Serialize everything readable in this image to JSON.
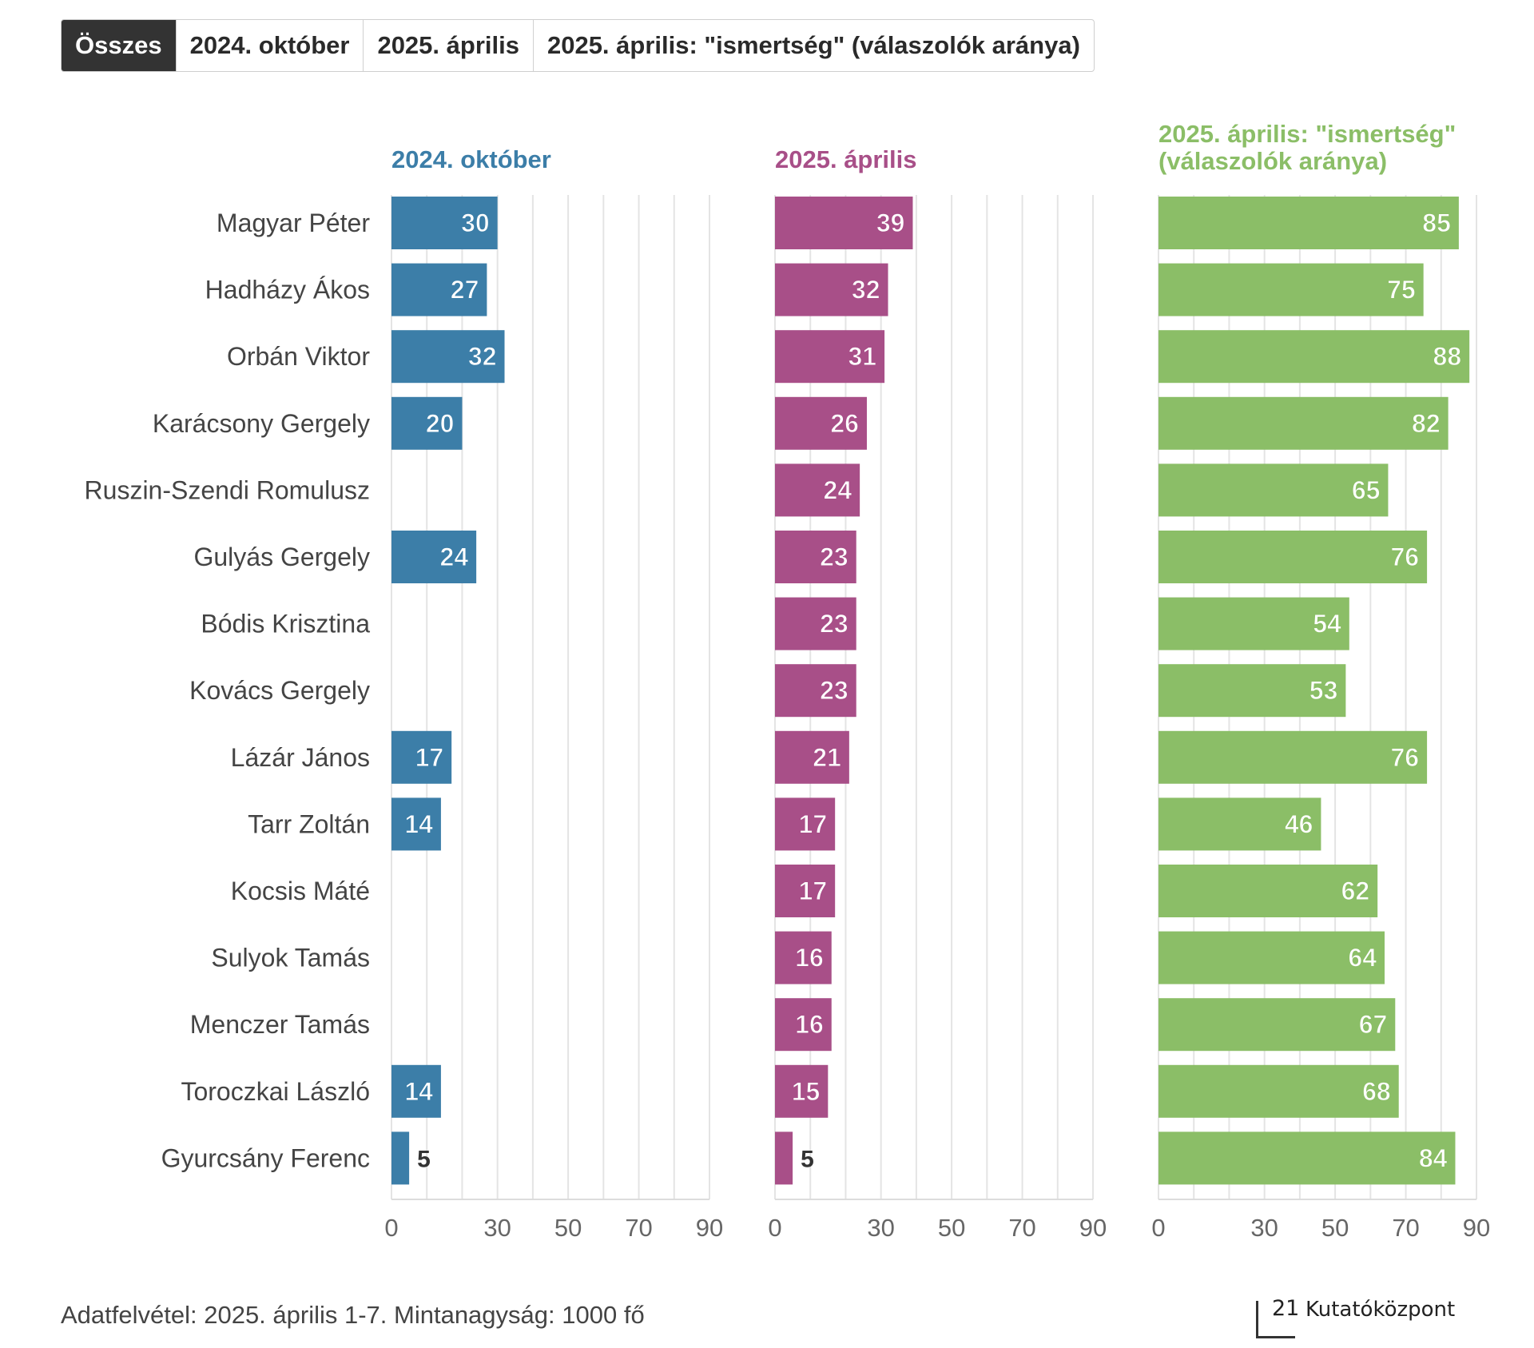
{
  "tabs": [
    {
      "label": "Összes",
      "active": true
    },
    {
      "label": "2024. október",
      "active": false
    },
    {
      "label": "2025. április",
      "active": false
    },
    {
      "label": "2025. április: \"ismertség\" (válaszolók aránya)",
      "active": false
    }
  ],
  "chart_data": {
    "type": "bar",
    "orientation": "horizontal",
    "categories": [
      "Magyar Péter",
      "Hadházy Ákos",
      "Orbán Viktor",
      "Karácsony Gergely",
      "Ruszin-Szendi Romulusz",
      "Gulyás Gergely",
      "Bódis Krisztina",
      "Kovács Gergely",
      "Lázár János",
      "Tarr Zoltán",
      "Kocsis Máté",
      "Sulyok Tamás",
      "Menczer Tamás",
      "Toroczkai László",
      "Gyurcsány Ferenc"
    ],
    "xlim": [
      0,
      90
    ],
    "x_ticks": [
      0,
      30,
      50,
      70,
      90
    ],
    "grid": true,
    "series": [
      {
        "name": "2024. október",
        "title_lines": [
          "2024. október"
        ],
        "color": "#3c7ea8",
        "values": [
          30,
          27,
          32,
          20,
          null,
          24,
          null,
          null,
          17,
          14,
          null,
          null,
          null,
          14,
          5
        ]
      },
      {
        "name": "2025. április",
        "title_lines": [
          "2025. április"
        ],
        "color": "#a84f88",
        "values": [
          39,
          32,
          31,
          26,
          24,
          23,
          23,
          23,
          21,
          17,
          17,
          16,
          16,
          15,
          5
        ]
      },
      {
        "name": "2025. április: \"ismertség\" (válaszolók aránya)",
        "title_lines": [
          "2025. április: \"ismertség\"",
          "(válaszolók aránya)"
        ],
        "color": "#8bbe67",
        "values": [
          85,
          75,
          88,
          82,
          65,
          76,
          54,
          53,
          76,
          46,
          62,
          64,
          67,
          68,
          84
        ]
      }
    ]
  },
  "footer": {
    "note": "Adatfelvétel: 2025. április 1-7. Mintanagyság: 1000 fő"
  },
  "logo": {
    "number": "21",
    "name": "Kutatóközpont"
  }
}
